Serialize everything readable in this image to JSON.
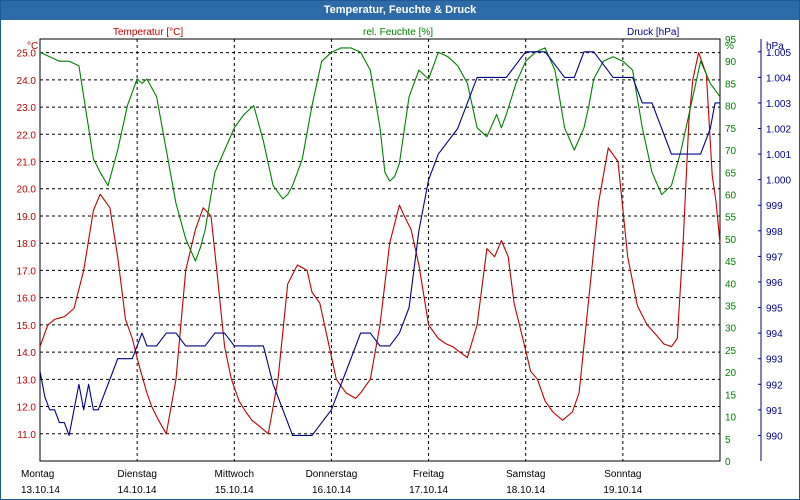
{
  "window": {
    "title": "Temperatur, Feuchte & Druck"
  },
  "colors": {
    "temperature": "#c00000",
    "humidity": "#008000",
    "pressure": "#00008b",
    "grid": "#000000",
    "titlebar": "#2d6aa8"
  },
  "chart_data": {
    "type": "line",
    "title": "Temperatur, Feuchte & Druck",
    "grid": true,
    "x_range": [
      0,
      7
    ],
    "day_labels": [
      {
        "day": "Montag",
        "date": "13.10.14",
        "x": 0
      },
      {
        "day": "Dienstag",
        "date": "14.10.14",
        "x": 1
      },
      {
        "day": "Mittwoch",
        "date": "15.10.14",
        "x": 2
      },
      {
        "day": "Donnerstag",
        "date": "16.10.14",
        "x": 3
      },
      {
        "day": "Freitag",
        "date": "17.10.14",
        "x": 4
      },
      {
        "day": "Samstag",
        "date": "18.10.14",
        "x": 5
      },
      {
        "day": "Sonntag",
        "date": "19.10.14",
        "x": 6
      }
    ],
    "axes": {
      "temperature": {
        "label": "Temperatur [°C]",
        "unit": "°C",
        "range": [
          10.0,
          25.5
        ],
        "ticks": [
          "25.0",
          "24.0",
          "23.0",
          "22.0",
          "21.0",
          "20.0",
          "19.0",
          "18.0",
          "17.0",
          "16.0",
          "15.0",
          "14.0",
          "13.0",
          "12.0",
          "11.0"
        ]
      },
      "humidity": {
        "label": "rel. Feuchte [%]",
        "unit": "%",
        "range": [
          0,
          95
        ],
        "ticks": [
          "95",
          "90",
          "85",
          "80",
          "75",
          "70",
          "65",
          "60",
          "55",
          "50",
          "45",
          "40",
          "35",
          "30",
          "25",
          "20",
          "15",
          "10",
          "5",
          "0"
        ]
      },
      "pressure": {
        "label": "Druck [hPa]",
        "unit": "hPa",
        "range": [
          989,
          1005.5
        ],
        "ticks": [
          "1.005",
          "1.004",
          "1.003",
          "1.002",
          "1.001",
          "1.000",
          "999",
          "998",
          "997",
          "996",
          "995",
          "994",
          "993",
          "992",
          "991",
          "990"
        ]
      }
    },
    "series": [
      {
        "name": "Temperatur",
        "axis": "temperature",
        "x": [
          0,
          0.08,
          0.15,
          0.25,
          0.35,
          0.45,
          0.55,
          0.62,
          0.72,
          0.8,
          0.88,
          0.95,
          1.02,
          1.1,
          1.15,
          1.22,
          1.3,
          1.4,
          1.5,
          1.6,
          1.68,
          1.76,
          1.82,
          1.9,
          1.97,
          2.05,
          2.12,
          2.18,
          2.25,
          2.35,
          2.45,
          2.55,
          2.65,
          2.75,
          2.8,
          2.88,
          2.96,
          3.05,
          3.15,
          3.25,
          3.3,
          3.4,
          3.5,
          3.6,
          3.7,
          3.75,
          3.82,
          3.9,
          4.0,
          4.1,
          4.18,
          4.25,
          4.32,
          4.4,
          4.5,
          4.6,
          4.68,
          4.75,
          4.82,
          4.88,
          4.97,
          5.05,
          5.12,
          5.2,
          5.28,
          5.38,
          5.48,
          5.55,
          5.65,
          5.75,
          5.85,
          5.95,
          6.05,
          6.15,
          6.25,
          6.35,
          6.42,
          6.5,
          6.56,
          6.62,
          6.68,
          6.72,
          6.78,
          6.86,
          6.92,
          6.96,
          7.0
        ],
        "values": [
          14.2,
          15.0,
          15.2,
          15.3,
          15.6,
          17.0,
          19.2,
          19.8,
          19.3,
          17.5,
          15.2,
          14.5,
          13.5,
          12.5,
          12.0,
          11.5,
          11.0,
          13.0,
          17.0,
          18.5,
          19.3,
          19.0,
          17.0,
          14.2,
          13.0,
          12.2,
          11.8,
          11.5,
          11.3,
          11.0,
          13.0,
          16.5,
          17.2,
          17.0,
          16.2,
          15.8,
          14.5,
          13.0,
          12.5,
          12.3,
          12.5,
          13.0,
          15.0,
          18.0,
          19.4,
          19.0,
          18.5,
          17.2,
          15.0,
          14.5,
          14.3,
          14.2,
          14.0,
          13.8,
          15.0,
          17.8,
          17.5,
          18.1,
          17.5,
          15.8,
          14.5,
          13.3,
          13.0,
          12.2,
          11.8,
          11.5,
          11.8,
          12.5,
          16.0,
          19.5,
          21.5,
          21.0,
          17.5,
          15.7,
          15.0,
          14.6,
          14.3,
          14.2,
          14.5,
          18.0,
          22.5,
          24.0,
          25.0,
          24.2,
          20.5,
          19.5,
          18.0
        ]
      },
      {
        "name": "rel. Feuchte",
        "axis": "humidity",
        "x": [
          0,
          0.1,
          0.2,
          0.3,
          0.4,
          0.5,
          0.55,
          0.62,
          0.7,
          0.8,
          0.9,
          1.0,
          1.05,
          1.1,
          1.2,
          1.3,
          1.4,
          1.5,
          1.6,
          1.65,
          1.7,
          1.8,
          1.9,
          2.0,
          2.1,
          2.2,
          2.3,
          2.4,
          2.5,
          2.55,
          2.6,
          2.7,
          2.8,
          2.9,
          3.0,
          3.1,
          3.2,
          3.3,
          3.4,
          3.5,
          3.55,
          3.6,
          3.65,
          3.7,
          3.8,
          3.9,
          4.0,
          4.1,
          4.2,
          4.3,
          4.4,
          4.5,
          4.6,
          4.7,
          4.75,
          4.8,
          4.9,
          5.0,
          5.1,
          5.2,
          5.3,
          5.4,
          5.5,
          5.6,
          5.65,
          5.7,
          5.8,
          5.9,
          6.0,
          6.1,
          6.2,
          6.3,
          6.4,
          6.5,
          6.6,
          6.7,
          6.8,
          6.9,
          7.0
        ],
        "values": [
          92,
          91,
          90,
          90,
          89,
          75,
          68,
          65,
          62,
          70,
          80,
          86,
          85,
          86,
          82,
          70,
          58,
          50,
          45,
          48,
          52,
          65,
          70,
          75,
          78,
          80,
          72,
          62,
          59,
          60,
          62,
          68,
          80,
          90,
          92,
          93,
          93,
          92,
          88,
          75,
          65,
          63,
          64,
          67,
          82,
          88,
          86,
          92,
          91,
          89,
          85,
          75,
          73,
          78,
          75,
          78,
          85,
          90,
          92,
          93,
          88,
          75,
          70,
          75,
          80,
          86,
          90,
          91,
          90,
          88,
          75,
          65,
          60,
          62,
          70,
          80,
          90,
          85,
          82
        ]
      },
      {
        "name": "Druck",
        "axis": "pressure",
        "x": [
          0,
          0.05,
          0.1,
          0.15,
          0.2,
          0.25,
          0.3,
          0.35,
          0.4,
          0.45,
          0.5,
          0.55,
          0.6,
          0.65,
          0.7,
          0.75,
          0.8,
          0.85,
          0.9,
          0.95,
          1.0,
          1.05,
          1.1,
          1.15,
          1.2,
          1.3,
          1.4,
          1.5,
          1.6,
          1.7,
          1.8,
          1.9,
          2.0,
          2.1,
          2.2,
          2.3,
          2.4,
          2.5,
          2.6,
          2.7,
          2.8,
          2.9,
          3.0,
          3.1,
          3.2,
          3.3,
          3.4,
          3.5,
          3.6,
          3.7,
          3.8,
          3.9,
          4.0,
          4.1,
          4.2,
          4.3,
          4.4,
          4.5,
          4.6,
          4.7,
          4.8,
          4.9,
          5.0,
          5.1,
          5.2,
          5.3,
          5.4,
          5.5,
          5.6,
          5.7,
          5.8,
          5.9,
          6.0,
          6.1,
          6.2,
          6.3,
          6.4,
          6.5,
          6.6,
          6.7,
          6.8,
          6.9,
          6.95,
          7.0
        ],
        "values": [
          992.5,
          991.5,
          991,
          991,
          990.5,
          990.5,
          990,
          991,
          992,
          991,
          992,
          991,
          991,
          991.5,
          992,
          992.5,
          993,
          993,
          993,
          993,
          993.5,
          994,
          993.5,
          993.5,
          993.5,
          994,
          994,
          993.5,
          993.5,
          993.5,
          994,
          994,
          993.5,
          993.5,
          993.5,
          993.5,
          992,
          991,
          990,
          990,
          990,
          990.5,
          991,
          992,
          993,
          994,
          994,
          993.5,
          993.5,
          994,
          995,
          998,
          1000,
          1001,
          1001.5,
          1002,
          1003,
          1004,
          1004,
          1004,
          1004,
          1004.5,
          1005,
          1005,
          1005,
          1004.5,
          1004,
          1004,
          1005,
          1005,
          1004.5,
          1004,
          1004,
          1004,
          1003,
          1003,
          1002,
          1001,
          1001,
          1001,
          1001,
          1002,
          1003,
          1003
        ]
      }
    ]
  }
}
